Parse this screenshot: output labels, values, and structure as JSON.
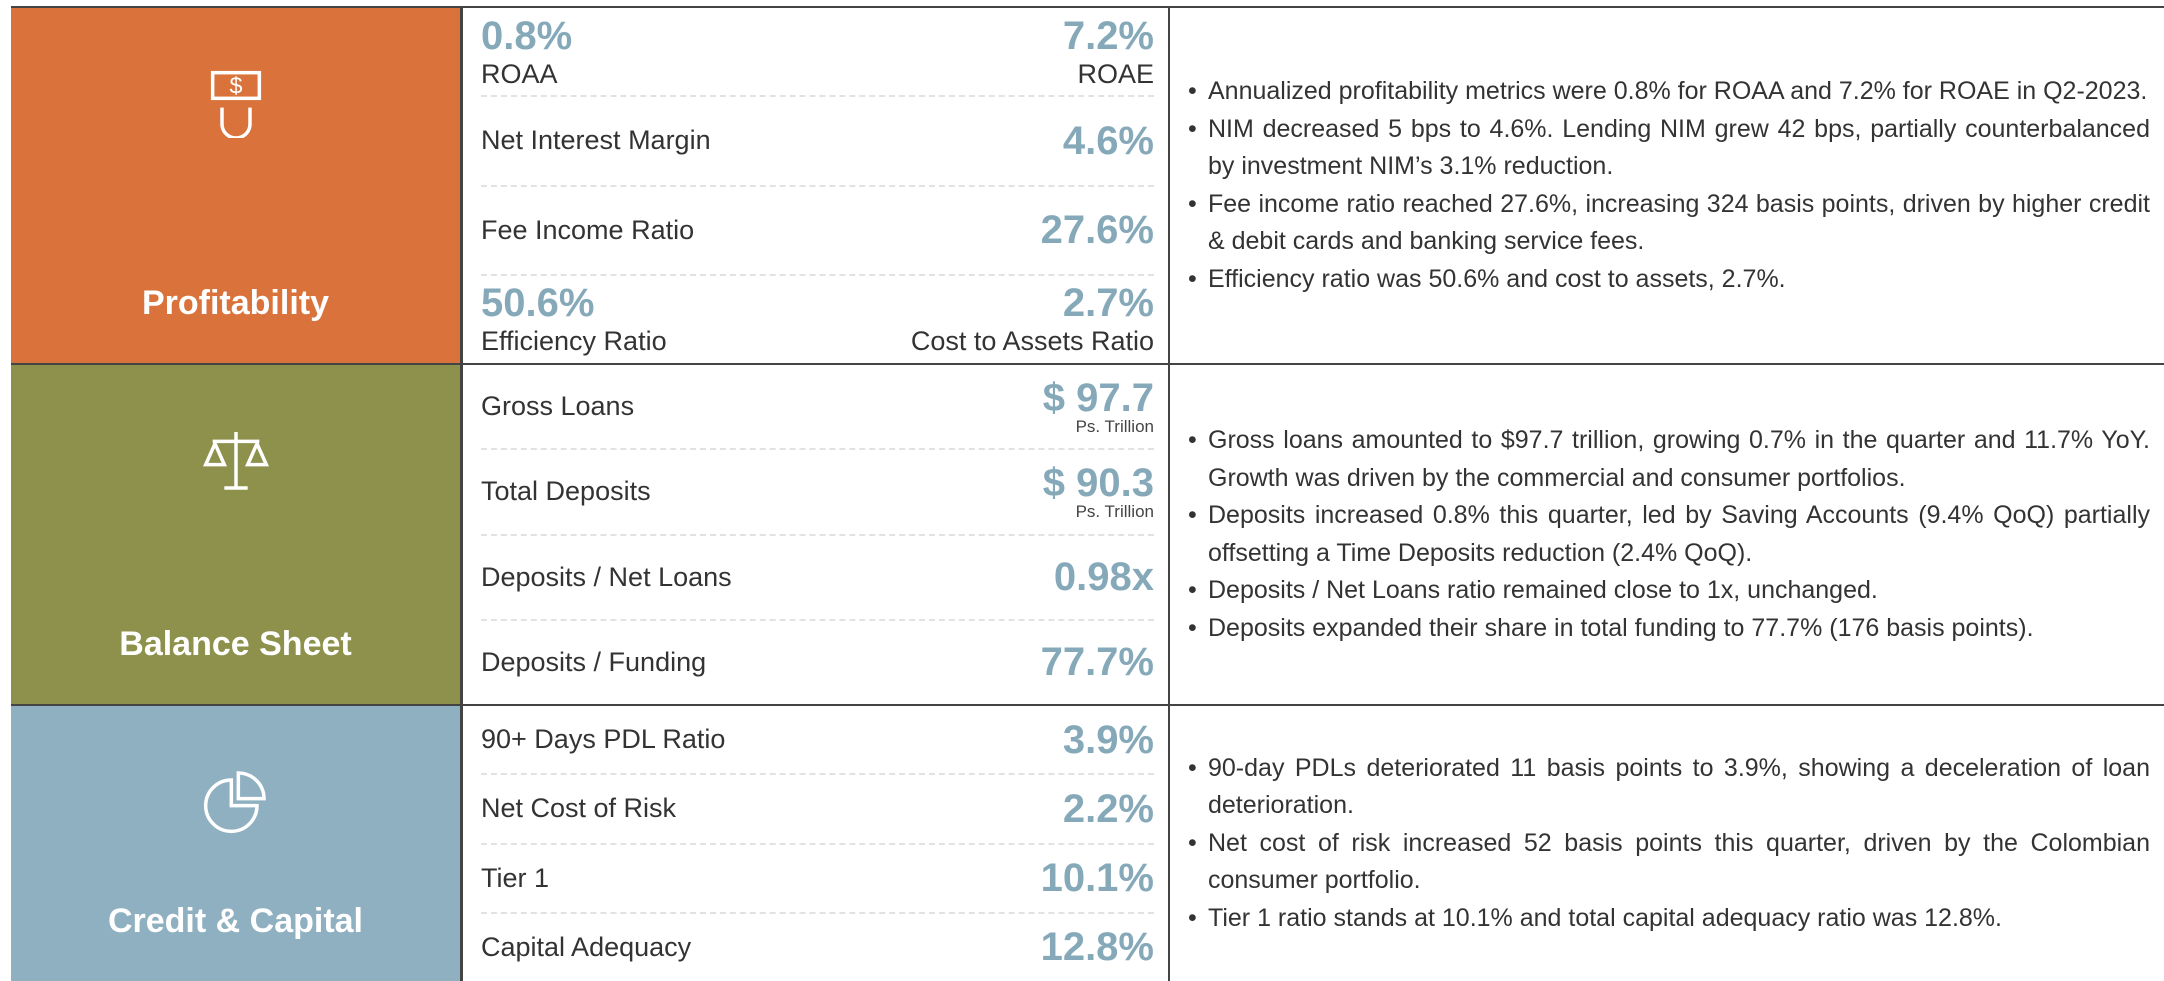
{
  "sections": [
    {
      "title": "Profitability",
      "color": "#d9733b",
      "metrics": [
        {
          "left": {
            "value": "0.8%",
            "label": "ROAA"
          },
          "right": {
            "value": "7.2%",
            "label": "ROAE"
          }
        },
        {
          "label": "Net Interest Margin",
          "value": "4.6%"
        },
        {
          "label": "Fee Income Ratio",
          "value": "27.6%"
        },
        {
          "left": {
            "value": "50.6%",
            "label": "Efficiency Ratio"
          },
          "right": {
            "value": "2.7%",
            "label": "Cost to Assets Ratio"
          }
        }
      ],
      "bullets": [
        "Annualized profitability metrics were 0.8% for ROAA and 7.2% for ROAE in Q2-2023.",
        "NIM decreased 5 bps to 4.6%. Lending NIM grew 42 bps, partially counterbalanced by investment NIM’s 3.1% reduction.",
        "Fee income ratio reached 27.6%, increasing 324 basis points, driven by higher credit & debit cards and banking service fees.",
        "Efficiency ratio was 50.6% and cost to assets, 2.7%."
      ]
    },
    {
      "title": "Balance Sheet",
      "color": "#8d914c",
      "metrics": [
        {
          "label": "Gross Loans",
          "value": "$ 97.7",
          "unit": "Ps. Trillion"
        },
        {
          "label": "Total Deposits",
          "value": "$ 90.3",
          "unit": "Ps. Trillion"
        },
        {
          "label": "Deposits / Net Loans",
          "value": "0.98x"
        },
        {
          "label": "Deposits / Funding",
          "value": "77.7%"
        }
      ],
      "bullets": [
        "Gross loans amounted to $97.7 trillion, growing 0.7% in the quarter and 11.7% YoY. Growth was driven by the commercial and consumer portfolios.",
        "Deposits increased 0.8% this quarter, led by Saving Accounts (9.4% QoQ) partially offsetting a Time Deposits reduction (2.4% QoQ).",
        "Deposits / Net Loans ratio remained close to 1x, unchanged.",
        "Deposits expanded their share in total funding to 77.7% (176 basis points)."
      ]
    },
    {
      "title": "Credit  & Capital",
      "color": "#8fb0c0",
      "metrics": [
        {
          "label": "90+ Days PDL Ratio",
          "value": "3.9%"
        },
        {
          "label": "Net Cost of Risk",
          "value": "2.2%"
        },
        {
          "label": "Tier 1",
          "value": "10.1%"
        },
        {
          "label": "Capital Adequacy",
          "value": "12.8%"
        }
      ],
      "bullets": [
        "90-day PDLs deteriorated 11 basis points to 3.9%, showing a deceleration of loan deterioration.",
        "Net cost of risk increased 52 basis points this quarter, driven by the Colombian consumer portfolio.",
        "Tier 1 ratio stands at 10.1% and total capital adequacy ratio was 12.8%."
      ]
    }
  ]
}
